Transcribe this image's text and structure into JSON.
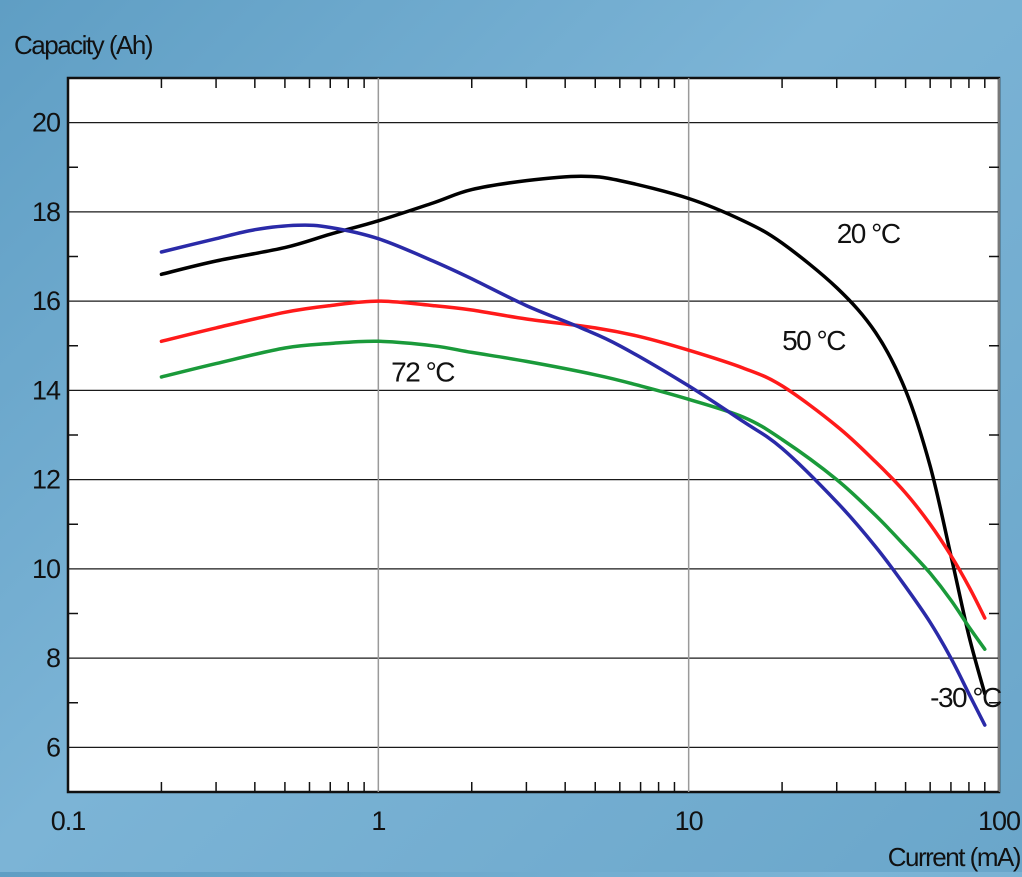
{
  "chart_data": {
    "type": "line",
    "ylabel": "Capacity (Ah)",
    "xlabel": "Current (mA)",
    "x_scale": "log",
    "xlim": [
      0.1,
      100
    ],
    "ylim": [
      5,
      21
    ],
    "grid": true,
    "x_ticks": [
      "0.1",
      "1",
      "10",
      "100"
    ],
    "y_ticks": [
      "6",
      "8",
      "10",
      "12",
      "14",
      "16",
      "18",
      "20"
    ],
    "series": [
      {
        "name": "20 °C",
        "color": "#000000",
        "x": [
          0.2,
          0.3,
          0.5,
          0.7,
          1,
          1.5,
          2,
          3,
          4.5,
          6,
          10,
          15,
          20,
          30,
          40,
          50,
          60,
          70,
          80,
          90
        ],
        "y": [
          16.6,
          16.9,
          17.2,
          17.5,
          17.8,
          18.2,
          18.5,
          18.7,
          18.8,
          18.7,
          18.3,
          17.8,
          17.3,
          16.3,
          15.3,
          14.0,
          12.3,
          10.3,
          8.5,
          7.2
        ]
      },
      {
        "name": "50 °C",
        "color": "#ff1a1a",
        "x": [
          0.2,
          0.3,
          0.5,
          0.7,
          1,
          1.5,
          2,
          3,
          5,
          7,
          10,
          15,
          20,
          30,
          40,
          50,
          60,
          70,
          80,
          90
        ],
        "y": [
          15.1,
          15.4,
          15.75,
          15.9,
          16.0,
          15.9,
          15.8,
          15.6,
          15.4,
          15.2,
          14.9,
          14.5,
          14.1,
          13.2,
          12.4,
          11.7,
          11.0,
          10.3,
          9.6,
          8.9
        ]
      },
      {
        "name": "72 °C",
        "color": "#1a9a3a",
        "x": [
          0.2,
          0.3,
          0.5,
          0.7,
          1,
          1.5,
          2,
          3,
          5,
          7,
          10,
          15,
          20,
          30,
          40,
          50,
          60,
          70,
          80,
          90
        ],
        "y": [
          14.3,
          14.6,
          14.95,
          15.05,
          15.1,
          15.0,
          14.85,
          14.65,
          14.35,
          14.1,
          13.8,
          13.4,
          12.9,
          12.0,
          11.2,
          10.5,
          9.9,
          9.3,
          8.7,
          8.2
        ]
      },
      {
        "name": "-30 °C",
        "color": "#2a2aa8",
        "x": [
          0.2,
          0.3,
          0.4,
          0.55,
          0.7,
          1,
          1.5,
          2,
          3,
          4.5,
          6,
          10,
          15,
          20,
          30,
          40,
          50,
          60,
          70,
          80,
          90
        ],
        "y": [
          17.1,
          17.4,
          17.6,
          17.7,
          17.65,
          17.4,
          16.9,
          16.5,
          15.9,
          15.4,
          15.0,
          14.1,
          13.3,
          12.7,
          11.5,
          10.5,
          9.6,
          8.8,
          8.0,
          7.2,
          6.5
        ]
      }
    ],
    "annotations": [
      {
        "text": "20 °C",
        "x": 30,
        "y": 17.3
      },
      {
        "text": "50 °C",
        "x": 20,
        "y": 14.9
      },
      {
        "text": "72 °C",
        "x": 1.1,
        "y": 14.2
      },
      {
        "text": "-30 °C",
        "x": 60,
        "y": 6.9
      }
    ]
  }
}
